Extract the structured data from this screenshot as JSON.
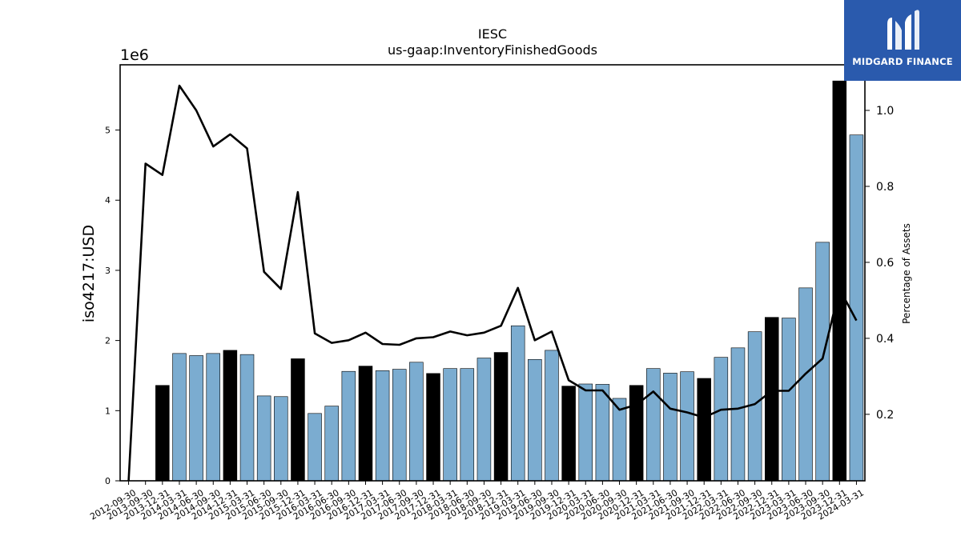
{
  "chart_data": {
    "type": "bar",
    "title": "IESC",
    "subtitle": "us-gaap:InventoryFinishedGoods",
    "ylabel": "iso4217:USD",
    "ylabel_right": "Percentage of Assets",
    "y_multiplier": "1e6",
    "ylim": [
      0,
      5930000
    ],
    "y_ticks": [
      0,
      1,
      2,
      3,
      4,
      5
    ],
    "ylim_right": [
      0.025,
      1.12
    ],
    "y_ticks_right": [
      "0.2",
      "0.4",
      "0.6",
      "0.8",
      "1.0"
    ],
    "categories": [
      "2012-09-30",
      "2013-09-30",
      "2013-12-31",
      "2014-03-31",
      "2014-06-30",
      "2014-09-30",
      "2014-12-31",
      "2015-03-31",
      "2015-06-30",
      "2015-09-30",
      "2015-12-31",
      "2016-03-31",
      "2016-06-30",
      "2016-09-30",
      "2016-12-31",
      "2017-03-31",
      "2017-06-30",
      "2017-09-30",
      "2017-12-31",
      "2018-03-31",
      "2018-06-30",
      "2018-09-30",
      "2018-12-31",
      "2019-03-31",
      "2019-06-30",
      "2019-09-30",
      "2019-12-31",
      "2020-03-31",
      "2020-06-30",
      "2020-09-30",
      "2020-12-31",
      "2021-03-31",
      "2021-06-30",
      "2021-09-30",
      "2021-12-31",
      "2022-03-31",
      "2022-06-30",
      "2022-09-30",
      "2022-12-31",
      "2023-03-31",
      "2023-06-30",
      "2023-09-30",
      "2023-12-31",
      "2024-03-31"
    ],
    "series": [
      {
        "type": "bar",
        "values": [
          0,
          0,
          1360000,
          1815000,
          1785000,
          1815000,
          1860000,
          1800000,
          1210000,
          1200000,
          1740000,
          960000,
          1065000,
          1560000,
          1635000,
          1570000,
          1590000,
          1690000,
          1530000,
          1600000,
          1600000,
          1750000,
          1830000,
          2210000,
          1730000,
          1860000,
          1350000,
          1380000,
          1375000,
          1175000,
          1360000,
          1600000,
          1535000,
          1555000,
          1460000,
          1760000,
          1895000,
          2125000,
          2330000,
          2320000,
          2750000,
          3400000,
          5700000,
          4930000
        ],
        "highlight_indices": [
          2,
          6,
          10,
          14,
          18,
          22,
          26,
          30,
          34,
          38,
          42
        ],
        "colors": {
          "normal": "#7bacd0",
          "highlight": "#000000",
          "edge": "#000000"
        }
      },
      {
        "type": "line",
        "axis": "right",
        "values": [
          0.025,
          0.86,
          0.83,
          1.065,
          1.0,
          0.905,
          0.937,
          0.9,
          0.575,
          0.53,
          0.785,
          0.413,
          0.388,
          0.395,
          0.415,
          0.385,
          0.383,
          0.4,
          0.403,
          0.418,
          0.408,
          0.415,
          0.433,
          0.533,
          0.395,
          0.418,
          0.29,
          0.263,
          0.263,
          0.212,
          0.225,
          0.26,
          0.215,
          0.205,
          0.192,
          0.212,
          0.215,
          0.227,
          0.262,
          0.262,
          0.307,
          0.347,
          0.53,
          0.447
        ],
        "color": "#000000"
      }
    ]
  },
  "brand": {
    "name": "MIDGARD FINANCE"
  }
}
